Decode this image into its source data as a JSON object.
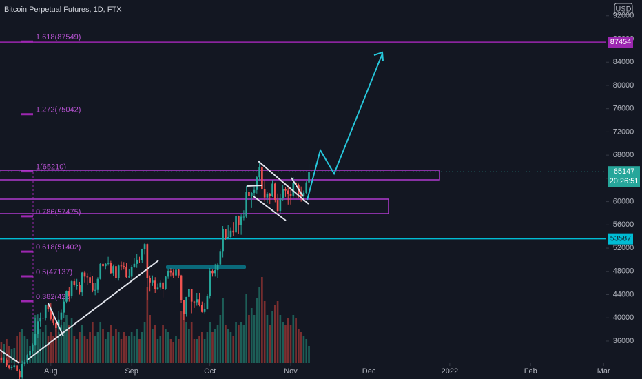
{
  "header": {
    "title": "Bitcoin Perpetual Futures, 1D, FTX",
    "currency": "USD"
  },
  "chart_data": {
    "type": "candlestick",
    "open": [
      33100,
      32700,
      32800,
      31800,
      31400,
      31500,
      31800,
      30800,
      29800,
      32100,
      32300,
      33600,
      34300,
      35400,
      37300,
      39400,
      40000,
      40000,
      42200,
      41500,
      39800,
      39100,
      38200,
      39700,
      40900,
      42800,
      44600,
      43800,
      46300,
      45600,
      45600,
      44400,
      47800,
      47100,
      47000,
      46000,
      44700,
      44800,
      46700,
      49300,
      48900,
      49300,
      49500,
      47700,
      48900,
      46900,
      49000,
      48900,
      48800,
      47000,
      47100,
      48800,
      49300,
      50000,
      49900,
      51800,
      52700,
      46900,
      46100,
      46400,
      44900,
      45200,
      46100,
      44900,
      47100,
      48100,
      47800,
      47300,
      48300,
      47300,
      43000,
      40700,
      43600,
      44900,
      42800,
      42700,
      43200,
      42200,
      41000,
      41500,
      43800,
      48100,
      47700,
      48200,
      49200,
      51500,
      55300,
      53800,
      53900,
      55000,
      54700,
      57500,
      56000,
      57400,
      57400,
      61700,
      60900,
      61500,
      62000,
      64200,
      66000,
      62200,
      60700,
      61400,
      60900,
      63100,
      60300,
      58400,
      60600,
      62200,
      61900,
      61300,
      61000,
      63200,
      62900,
      61400,
      61000,
      61500,
      63300
    ],
    "high": [
      33300,
      33200,
      33000,
      32000,
      31900,
      32200,
      31900,
      31100,
      32600,
      32800,
      33800,
      34600,
      35600,
      40000,
      40600,
      40900,
      41400,
      42300,
      42600,
      42600,
      40400,
      39800,
      41100,
      41400,
      43300,
      44700,
      45300,
      46500,
      46700,
      46700,
      46200,
      48000,
      48100,
      47700,
      48000,
      47200,
      46000,
      47000,
      49400,
      49800,
      49500,
      50500,
      49800,
      49200,
      49300,
      49200,
      49700,
      49600,
      49400,
      48400,
      49100,
      50300,
      51000,
      50500,
      51900,
      52900,
      52800,
      47300,
      47300,
      47000,
      45900,
      46400,
      46700,
      47200,
      48400,
      48500,
      48300,
      48800,
      48400,
      47400,
      43100,
      43600,
      45000,
      45000,
      42900,
      44300,
      44300,
      42800,
      42600,
      44100,
      48500,
      48300,
      49300,
      49500,
      51900,
      55800,
      55300,
      56000,
      55500,
      56500,
      57800,
      57600,
      57800,
      58500,
      62700,
      62300,
      61700,
      62600,
      64400,
      67000,
      66600,
      63700,
      61700,
      61500,
      63700,
      63300,
      61400,
      61400,
      62900,
      62500,
      62400,
      62400,
      64200,
      63500,
      63100,
      62600,
      61900,
      63500,
      66500
    ],
    "low": [
      32300,
      32200,
      31600,
      31100,
      31000,
      31300,
      30400,
      29300,
      29500,
      31700,
      32100,
      33400,
      33900,
      35200,
      36500,
      38500,
      38900,
      39500,
      41000,
      39500,
      38700,
      37600,
      37500,
      37400,
      39900,
      42500,
      42800,
      43300,
      45400,
      44800,
      44000,
      43800,
      46100,
      45600,
      45600,
      44400,
      43900,
      44300,
      46600,
      48300,
      48300,
      49000,
      47600,
      47200,
      46500,
      46400,
      48200,
      48300,
      46900,
      46800,
      46600,
      48600,
      48600,
      49500,
      49500,
      50900,
      43000,
      44500,
      45500,
      44300,
      44800,
      44800,
      43500,
      44800,
      46700,
      47100,
      46800,
      47100,
      46900,
      42600,
      39600,
      40200,
      43100,
      40800,
      41700,
      42100,
      42000,
      40900,
      40800,
      41400,
      43300,
      47100,
      47100,
      46900,
      49100,
      50400,
      53400,
      53700,
      53700,
      54100,
      54400,
      54500,
      54300,
      56800,
      57100,
      60200,
      58900,
      60700,
      61400,
      63500,
      62000,
      60000,
      59700,
      59600,
      60800,
      59900,
      58100,
      58000,
      60200,
      60800,
      59500,
      59500,
      60700,
      60300,
      60700,
      60000,
      60700,
      61300,
      63100
    ],
    "close": [
      32700,
      32800,
      31800,
      31400,
      31500,
      31800,
      30800,
      29800,
      32100,
      32300,
      33600,
      34300,
      35400,
      37300,
      39400,
      40000,
      40000,
      42200,
      41500,
      39800,
      39100,
      38200,
      39700,
      40900,
      42800,
      44600,
      43800,
      46300,
      45600,
      45600,
      44400,
      47800,
      47100,
      47000,
      46000,
      44700,
      44800,
      46700,
      49300,
      48900,
      49300,
      49500,
      47700,
      48900,
      46900,
      49000,
      48900,
      48800,
      47000,
      47100,
      48800,
      49300,
      50000,
      49900,
      51800,
      52700,
      46900,
      46100,
      46400,
      44900,
      45200,
      46100,
      44900,
      47100,
      48100,
      47800,
      47300,
      48300,
      47300,
      43000,
      40700,
      43600,
      44900,
      42800,
      42700,
      43200,
      42200,
      41000,
      41500,
      43800,
      48100,
      47700,
      48200,
      49200,
      51500,
      55300,
      53800,
      53900,
      55000,
      54700,
      57500,
      56000,
      57400,
      57400,
      61700,
      60900,
      61500,
      62000,
      64200,
      66000,
      62200,
      60700,
      61400,
      60900,
      63100,
      60300,
      58400,
      60600,
      62200,
      61900,
      61300,
      61000,
      63200,
      62900,
      61400,
      61000,
      61500,
      63300,
      65147
    ],
    "volume": [
      30,
      28,
      35,
      25,
      20,
      22,
      40,
      45,
      50,
      40,
      35,
      25,
      45,
      70,
      60,
      50,
      45,
      55,
      40,
      45,
      40,
      50,
      45,
      55,
      60,
      70,
      55,
      65,
      40,
      35,
      45,
      55,
      40,
      35,
      45,
      60,
      40,
      45,
      60,
      50,
      35,
      45,
      55,
      40,
      50,
      45,
      35,
      45,
      40,
      40,
      45,
      40,
      50,
      35,
      45,
      60,
      110,
      70,
      50,
      55,
      35,
      40,
      55,
      50,
      45,
      35,
      30,
      40,
      35,
      75,
      85,
      60,
      50,
      60,
      35,
      35,
      40,
      45,
      35,
      45,
      60,
      45,
      50,
      55,
      70,
      95,
      55,
      50,
      45,
      40,
      60,
      55,
      60,
      55,
      100,
      70,
      80,
      70,
      95,
      110,
      125,
      90,
      70,
      55,
      75,
      85,
      90,
      70,
      60,
      55,
      65,
      55,
      70,
      65,
      50,
      45,
      40,
      35,
      25
    ],
    "up_color": "#26a69a",
    "down_color": "#ef5350",
    "volume_up_color": "#1d5e57",
    "volume_down_color": "#7a2e2f",
    "xlim": [
      -0.5,
      232
    ],
    "xticks": [
      {
        "value": 19,
        "label": "Aug"
      },
      {
        "value": 50,
        "label": "Sep"
      },
      {
        "value": 80,
        "label": "Oct"
      },
      {
        "value": 111,
        "label": "Nov"
      },
      {
        "value": 141,
        "label": "Dec"
      },
      {
        "value": 172,
        "label": "2022"
      },
      {
        "value": 203,
        "label": "Feb"
      },
      {
        "value": 231,
        "label": "Mar"
      }
    ],
    "ylim": [
      32200,
      94700
    ],
    "yticks": [
      36000,
      40000,
      44000,
      48000,
      52000,
      56000,
      60000,
      64000,
      68000,
      72000,
      76000,
      80000,
      84000,
      88000,
      92000
    ],
    "price_lines": [
      {
        "value": 87454,
        "color": "#9c27b0"
      },
      {
        "value": 53587,
        "color": "#00bcd4"
      }
    ],
    "last_price": 65147,
    "countdown": "20:26:51",
    "fib_levels": [
      {
        "label": "1.618(87549)",
        "value": 87549
      },
      {
        "label": "1.272(75042)",
        "value": 75042
      },
      {
        "label": "1(65210)",
        "value": 65210
      },
      {
        "label": "0.786(57475)",
        "value": 57475
      },
      {
        "label": "0.618(51402)",
        "value": 51402
      },
      {
        "label": "0.5(47137)",
        "value": 47137
      },
      {
        "label": "0.382(428",
        "value": 42872
      }
    ]
  }
}
